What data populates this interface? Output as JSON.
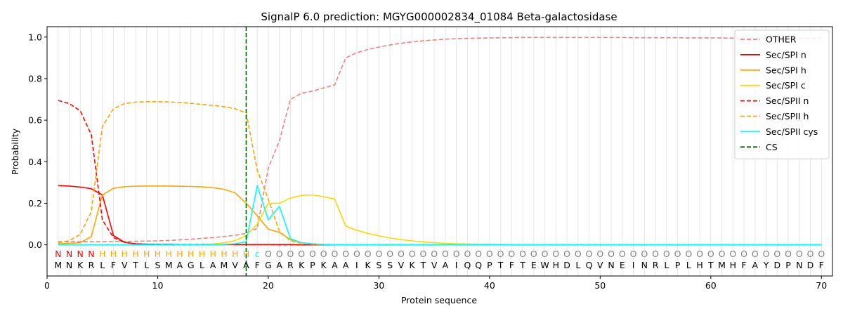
{
  "chart_data": {
    "type": "line",
    "title": "SignalP 6.0 prediction: MGYG000002834_01084 Beta-galactosidase",
    "xlabel": "Protein sequence",
    "ylabel": "Probability",
    "xlim": [
      0,
      71
    ],
    "ylim": [
      -0.15,
      1.05
    ],
    "xticks": [
      0,
      10,
      20,
      30,
      40,
      50,
      60,
      70
    ],
    "yticks": [
      0.0,
      0.2,
      0.4,
      0.6,
      0.8,
      1.0
    ],
    "xtick_labels": [
      "0",
      "10",
      "20",
      "30",
      "40",
      "50",
      "60",
      "70"
    ],
    "ytick_labels": [
      "0.0",
      "0.2",
      "0.4",
      "0.6",
      "0.8",
      "1.0"
    ],
    "legend_position": "top-right",
    "grid": "vertical lines at each residue",
    "sequence": [
      "M",
      "N",
      "K",
      "R",
      "L",
      "F",
      "V",
      "T",
      "L",
      "S",
      "M",
      "A",
      "G",
      "L",
      "A",
      "M",
      "V",
      "A",
      "F",
      "G",
      "A",
      "R",
      "K",
      "P",
      "K",
      "A",
      "A",
      "I",
      "K",
      "S",
      "S",
      "V",
      "K",
      "T",
      "V",
      "A",
      "I",
      "Q",
      "Q",
      "P",
      "T",
      "F",
      "T",
      "E",
      "W",
      "H",
      "D",
      "L",
      "Q",
      "V",
      "N",
      "E",
      "I",
      "N",
      "R",
      "L",
      "P",
      "L",
      "H",
      "T",
      "M",
      "H",
      "F",
      "A",
      "Y",
      "D",
      "P",
      "N",
      "D",
      "F"
    ],
    "regions": [
      "N",
      "N",
      "N",
      "N",
      "H",
      "H",
      "H",
      "H",
      "H",
      "H",
      "H",
      "H",
      "H",
      "H",
      "H",
      "H",
      "H",
      "H",
      "c",
      "O",
      "O",
      "O",
      "O",
      "O",
      "O",
      "O",
      "O",
      "O",
      "O",
      "O",
      "O",
      "O",
      "O",
      "O",
      "O",
      "O",
      "O",
      "O",
      "O",
      "O",
      "O",
      "O",
      "O",
      "O",
      "O",
      "O",
      "O",
      "O",
      "O",
      "O",
      "O",
      "O",
      "O",
      "O",
      "O",
      "O",
      "O",
      "O",
      "O",
      "O",
      "O",
      "O",
      "O",
      "O",
      "O",
      "O",
      "O",
      "O",
      "O",
      "O"
    ],
    "region_colors": {
      "N": "#ff0000",
      "H": "#ffa500",
      "c": "#00ffff",
      "O": "#808080"
    },
    "cs_position": 18,
    "series": [
      {
        "name": "OTHER",
        "color": "#f08080",
        "dash": "dashed",
        "values": [
          0.015,
          0.015,
          0.015,
          0.015,
          0.015,
          0.016,
          0.016,
          0.017,
          0.018,
          0.019,
          0.021,
          0.024,
          0.027,
          0.031,
          0.035,
          0.04,
          0.046,
          0.055,
          0.08,
          0.37,
          0.5,
          0.7,
          0.73,
          0.74,
          0.755,
          0.77,
          0.9,
          0.925,
          0.94,
          0.952,
          0.962,
          0.97,
          0.977,
          0.982,
          0.986,
          0.99,
          0.992,
          0.994,
          0.995,
          0.996,
          0.997,
          0.997,
          0.998,
          0.998,
          0.998,
          0.998,
          0.998,
          0.998,
          0.998,
          0.998,
          0.998,
          0.998,
          0.997,
          0.997,
          0.997,
          0.997,
          0.997,
          0.996,
          0.996,
          0.996,
          0.996,
          0.995,
          0.995,
          0.995,
          0.995,
          0.995,
          0.995,
          0.995,
          0.995,
          0.995
        ]
      },
      {
        "name": "Sec/SPI n",
        "color": "#ff0000",
        "dash": "solid",
        "values": [
          0.285,
          0.283,
          0.278,
          0.27,
          0.24,
          0.045,
          0.012,
          0.005,
          0.003,
          0.002,
          0.002,
          0.001,
          0.001,
          0.001,
          0.001,
          0.001,
          0.001,
          0.001,
          0.001,
          0.001,
          0.001,
          0.001,
          0,
          0,
          0,
          0,
          0,
          0,
          0,
          0,
          0,
          0,
          0,
          0,
          0,
          0,
          0,
          0,
          0,
          0,
          0,
          0,
          0,
          0,
          0,
          0,
          0,
          0,
          0,
          0,
          0,
          0,
          0,
          0,
          0,
          0,
          0,
          0,
          0,
          0,
          0,
          0,
          0,
          0,
          0,
          0,
          0,
          0,
          0,
          0
        ]
      },
      {
        "name": "Sec/SPI h",
        "color": "#ffa500",
        "dash": "solid",
        "values": [
          0.005,
          0.007,
          0.01,
          0.04,
          0.24,
          0.272,
          0.28,
          0.282,
          0.283,
          0.283,
          0.283,
          0.282,
          0.281,
          0.279,
          0.275,
          0.267,
          0.25,
          0.2,
          0.14,
          0.075,
          0.06,
          0.025,
          0.01,
          0.004,
          0.002,
          0.001,
          0,
          0,
          0,
          0,
          0,
          0,
          0,
          0,
          0,
          0,
          0,
          0,
          0,
          0,
          0,
          0,
          0,
          0,
          0,
          0,
          0,
          0,
          0,
          0,
          0,
          0,
          0,
          0,
          0,
          0,
          0,
          0,
          0,
          0,
          0,
          0,
          0,
          0,
          0,
          0,
          0,
          0,
          0,
          0
        ]
      },
      {
        "name": "Sec/SPI c",
        "color": "#ffd700",
        "dash": "solid",
        "values": [
          0,
          0,
          0,
          0,
          0,
          0,
          0,
          0,
          0,
          0,
          0,
          0.001,
          0.001,
          0.002,
          0.004,
          0.01,
          0.02,
          0.045,
          0.1,
          0.2,
          0.2,
          0.225,
          0.238,
          0.24,
          0.232,
          0.22,
          0.09,
          0.07,
          0.055,
          0.043,
          0.033,
          0.025,
          0.019,
          0.014,
          0.01,
          0.007,
          0.005,
          0.004,
          0.003,
          0.002,
          0.002,
          0.001,
          0.001,
          0.001,
          0.001,
          0.001,
          0,
          0,
          0,
          0,
          0,
          0,
          0,
          0,
          0,
          0,
          0,
          0,
          0,
          0,
          0,
          0,
          0,
          0,
          0,
          0,
          0,
          0,
          0,
          0
        ]
      },
      {
        "name": "Sec/SPII n",
        "color": "#ff0000",
        "dash": "dashed",
        "values": [
          0.695,
          0.68,
          0.645,
          0.53,
          0.12,
          0.035,
          0.012,
          0.005,
          0.003,
          0.002,
          0.002,
          0.001,
          0.001,
          0.001,
          0.001,
          0.001,
          0.001,
          0.001,
          0.001,
          0.001,
          0,
          0,
          0,
          0,
          0,
          0,
          0,
          0,
          0,
          0,
          0,
          0,
          0,
          0,
          0,
          0,
          0,
          0,
          0,
          0,
          0,
          0,
          0,
          0,
          0,
          0,
          0,
          0,
          0,
          0,
          0,
          0,
          0,
          0,
          0,
          0,
          0,
          0,
          0,
          0,
          0,
          0,
          0,
          0,
          0,
          0,
          0,
          0,
          0,
          0
        ]
      },
      {
        "name": "Sec/SPII h",
        "color": "#ffa500",
        "dash": "dashed",
        "values": [
          0.01,
          0.02,
          0.05,
          0.16,
          0.57,
          0.655,
          0.68,
          0.687,
          0.689,
          0.689,
          0.688,
          0.685,
          0.681,
          0.676,
          0.671,
          0.665,
          0.655,
          0.635,
          0.36,
          0.22,
          0.065,
          0.02,
          0.007,
          0.003,
          0.001,
          0,
          0,
          0,
          0,
          0,
          0,
          0,
          0,
          0,
          0,
          0,
          0,
          0,
          0,
          0,
          0,
          0,
          0,
          0,
          0,
          0,
          0,
          0,
          0,
          0,
          0,
          0,
          0,
          0,
          0,
          0,
          0,
          0,
          0,
          0,
          0,
          0,
          0,
          0,
          0,
          0,
          0,
          0,
          0,
          0
        ]
      },
      {
        "name": "Sec/SPII cys",
        "color": "#00ffff",
        "dash": "solid",
        "values": [
          0,
          0,
          0,
          0,
          0,
          0,
          0,
          0,
          0,
          0,
          0,
          0,
          0,
          0,
          0.001,
          0.002,
          0.005,
          0.015,
          0.285,
          0.12,
          0.185,
          0.03,
          0.01,
          0.005,
          0.002,
          0.001,
          0,
          0,
          0,
          0,
          0,
          0,
          0,
          0,
          0,
          0,
          0,
          0,
          0,
          0,
          0,
          0,
          0,
          0,
          0,
          0,
          0,
          0,
          0,
          0,
          0,
          0,
          0,
          0,
          0,
          0,
          0,
          0,
          0,
          0,
          0,
          0,
          0,
          0,
          0,
          0,
          0,
          0,
          0,
          0
        ]
      },
      {
        "name": "CS",
        "color": "#006400",
        "dash": "dashed",
        "values": []
      }
    ]
  }
}
